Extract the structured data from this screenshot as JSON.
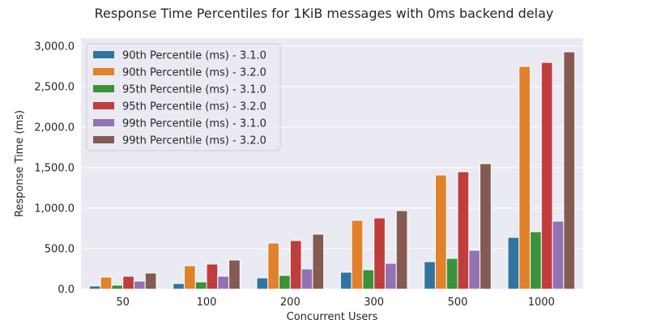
{
  "chart_data": {
    "type": "bar",
    "title": "Response Time Percentiles for 1KiB messages with 0ms backend delay",
    "xlabel": "Concurrent Users",
    "ylabel": "Response Time (ms)",
    "categories": [
      "50",
      "100",
      "200",
      "300",
      "500",
      "1000"
    ],
    "ylim": [
      0,
      3100
    ],
    "yticks": [
      0,
      500,
      1000,
      1500,
      2000,
      2500,
      3000
    ],
    "ytick_labels": [
      "0.0",
      "500.0",
      "1,000.0",
      "1,500.0",
      "2,000.0",
      "2,500.0",
      "3,000.0"
    ],
    "grid": true,
    "legend_position": "top-left",
    "series": [
      {
        "name": "90th Percentile (ms) - 3.1.0",
        "color": "#3274a1",
        "values": [
          40,
          70,
          140,
          210,
          340,
          640
        ]
      },
      {
        "name": "90th Percentile (ms) - 3.2.0",
        "color": "#e1812c",
        "values": [
          150,
          290,
          570,
          850,
          1410,
          2750
        ]
      },
      {
        "name": "95th Percentile (ms) - 3.1.0",
        "color": "#3a923a",
        "values": [
          50,
          90,
          170,
          240,
          380,
          710
        ]
      },
      {
        "name": "95th Percentile (ms) - 3.2.0",
        "color": "#c03d3e",
        "values": [
          160,
          310,
          600,
          880,
          1450,
          2800
        ]
      },
      {
        "name": "99th Percentile (ms) - 3.1.0",
        "color": "#9372b2",
        "values": [
          100,
          160,
          250,
          320,
          480,
          840
        ]
      },
      {
        "name": "99th Percentile (ms) - 3.2.0",
        "color": "#845b53",
        "values": [
          200,
          360,
          680,
          970,
          1550,
          2930
        ]
      }
    ]
  }
}
